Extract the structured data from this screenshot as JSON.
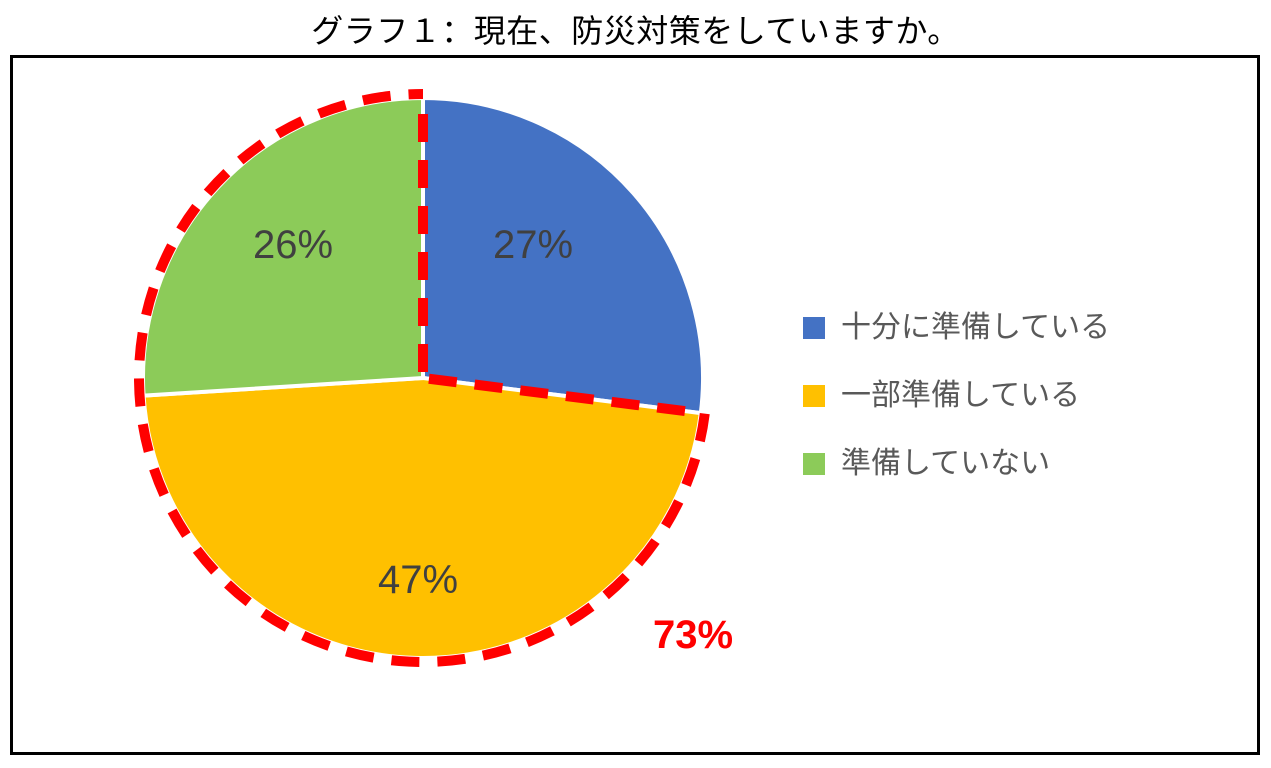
{
  "title": "グラフ１：現在、防災対策をしていますか。",
  "chart": {
    "type": "pie",
    "background_color": "#ffffff",
    "border_color": "#000000",
    "slice_border_color": "#ffffff",
    "slice_border_width": 4,
    "pie_radius": 280,
    "slices": [
      {
        "label": "十分に準備している",
        "value": 27,
        "color": "#4472c4",
        "pct_text": "27%"
      },
      {
        "label": "一部準備している",
        "value": 47,
        "color": "#ffc000",
        "pct_text": "47%"
      },
      {
        "label": "準備していない",
        "value": 26,
        "color": "#8ccb59",
        "pct_text": "26%"
      }
    ],
    "highlight": {
      "combined_pct_text": "73%",
      "combined_slices": [
        1,
        2
      ],
      "stroke_color": "#ff0000",
      "stroke_width": 10,
      "dash": "28 18"
    },
    "pct_label_fontsize": 40,
    "pct_label_color": "#404040",
    "callout_fontsize": 40,
    "callout_color": "#ff0000",
    "legend_fontsize": 30,
    "legend_text_color": "#595959",
    "legend_swatch_size": 22
  }
}
